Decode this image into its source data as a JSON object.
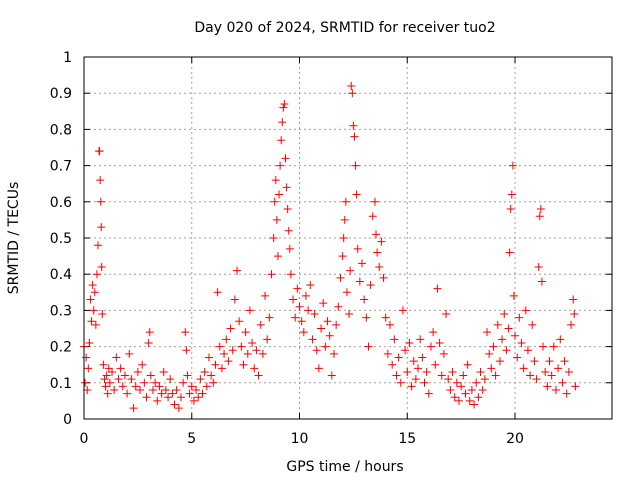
{
  "chart_data": {
    "type": "scatter",
    "title": "Day 020 of 2024, SRMTID for receiver tuo2",
    "xlabel": "GPS time / hours",
    "ylabel": "SRMTID / TECUs",
    "xlim": [
      0,
      24.5
    ],
    "ylim": [
      0,
      1
    ],
    "xticks": [
      0,
      5,
      10,
      15,
      20
    ],
    "xtick_labels": [
      "0",
      "5",
      "10",
      "15",
      "20"
    ],
    "yticks": [
      0,
      0.1,
      0.2,
      0.3,
      0.4,
      0.5,
      0.6,
      0.7,
      0.8,
      0.9,
      1
    ],
    "ytick_labels": [
      "0",
      "0.1",
      "0.2",
      "0.3",
      "0.4",
      "0.5",
      "0.6",
      "0.7",
      "0.8",
      "0.9",
      "1"
    ],
    "grid": true,
    "marker": "+",
    "color": "#ff0000",
    "series": [
      {
        "name": "SRMTID",
        "points": [
          [
            0.0,
            0.2
          ],
          [
            0.05,
            0.1
          ],
          [
            0.1,
            0.17
          ],
          [
            0.15,
            0.08
          ],
          [
            0.2,
            0.14
          ],
          [
            0.25,
            0.21
          ],
          [
            0.3,
            0.33
          ],
          [
            0.35,
            0.27
          ],
          [
            0.4,
            0.37
          ],
          [
            0.45,
            0.3
          ],
          [
            0.5,
            0.35
          ],
          [
            0.55,
            0.26
          ],
          [
            0.6,
            0.4
          ],
          [
            0.65,
            0.48
          ],
          [
            0.7,
            0.74
          ],
          [
            0.72,
            0.74
          ],
          [
            0.75,
            0.66
          ],
          [
            0.78,
            0.6
          ],
          [
            0.8,
            0.53
          ],
          [
            0.82,
            0.42
          ],
          [
            0.85,
            0.29
          ],
          [
            0.9,
            0.15
          ],
          [
            0.95,
            0.11
          ],
          [
            1.0,
            0.09
          ],
          [
            1.05,
            0.12
          ],
          [
            1.1,
            0.07
          ],
          [
            1.15,
            0.14
          ],
          [
            1.2,
            0.1
          ],
          [
            1.3,
            0.13
          ],
          [
            1.4,
            0.08
          ],
          [
            1.5,
            0.17
          ],
          [
            1.6,
            0.11
          ],
          [
            1.7,
            0.14
          ],
          [
            1.8,
            0.09
          ],
          [
            1.9,
            0.12
          ],
          [
            2.0,
            0.07
          ],
          [
            2.1,
            0.18
          ],
          [
            2.2,
            0.11
          ],
          [
            2.3,
            0.03
          ],
          [
            2.4,
            0.09
          ],
          [
            2.5,
            0.13
          ],
          [
            2.6,
            0.08
          ],
          [
            2.7,
            0.15
          ],
          [
            2.8,
            0.1
          ],
          [
            2.9,
            0.06
          ],
          [
            3.0,
            0.21
          ],
          [
            3.05,
            0.24
          ],
          [
            3.1,
            0.12
          ],
          [
            3.2,
            0.08
          ],
          [
            3.3,
            0.1
          ],
          [
            3.4,
            0.05
          ],
          [
            3.5,
            0.09
          ],
          [
            3.6,
            0.07
          ],
          [
            3.7,
            0.13
          ],
          [
            3.8,
            0.08
          ],
          [
            3.9,
            0.06
          ],
          [
            4.0,
            0.11
          ],
          [
            4.1,
            0.07
          ],
          [
            4.2,
            0.04
          ],
          [
            4.3,
            0.08
          ],
          [
            4.4,
            0.03
          ],
          [
            4.5,
            0.06
          ],
          [
            4.6,
            0.1
          ],
          [
            4.7,
            0.24
          ],
          [
            4.75,
            0.19
          ],
          [
            4.8,
            0.12
          ],
          [
            4.9,
            0.07
          ],
          [
            5.0,
            0.09
          ],
          [
            5.1,
            0.05
          ],
          [
            5.2,
            0.08
          ],
          [
            5.3,
            0.06
          ],
          [
            5.4,
            0.11
          ],
          [
            5.5,
            0.07
          ],
          [
            5.6,
            0.13
          ],
          [
            5.7,
            0.09
          ],
          [
            5.8,
            0.17
          ],
          [
            5.9,
            0.12
          ],
          [
            6.0,
            0.1
          ],
          [
            6.1,
            0.15
          ],
          [
            6.2,
            0.35
          ],
          [
            6.3,
            0.2
          ],
          [
            6.4,
            0.14
          ],
          [
            6.5,
            0.18
          ],
          [
            6.6,
            0.22
          ],
          [
            6.7,
            0.16
          ],
          [
            6.8,
            0.25
          ],
          [
            6.9,
            0.19
          ],
          [
            7.0,
            0.33
          ],
          [
            7.1,
            0.41
          ],
          [
            7.2,
            0.27
          ],
          [
            7.3,
            0.2
          ],
          [
            7.4,
            0.15
          ],
          [
            7.5,
            0.24
          ],
          [
            7.6,
            0.18
          ],
          [
            7.7,
            0.3
          ],
          [
            7.8,
            0.21
          ],
          [
            7.9,
            0.14
          ],
          [
            8.0,
            0.19
          ],
          [
            8.1,
            0.12
          ],
          [
            8.2,
            0.26
          ],
          [
            8.3,
            0.18
          ],
          [
            8.4,
            0.34
          ],
          [
            8.5,
            0.22
          ],
          [
            8.6,
            0.28
          ],
          [
            8.7,
            0.4
          ],
          [
            8.8,
            0.5
          ],
          [
            8.85,
            0.6
          ],
          [
            8.9,
            0.66
          ],
          [
            8.95,
            0.55
          ],
          [
            9.0,
            0.45
          ],
          [
            9.05,
            0.62
          ],
          [
            9.1,
            0.7
          ],
          [
            9.15,
            0.77
          ],
          [
            9.2,
            0.82
          ],
          [
            9.25,
            0.86
          ],
          [
            9.3,
            0.87
          ],
          [
            9.35,
            0.72
          ],
          [
            9.4,
            0.64
          ],
          [
            9.45,
            0.58
          ],
          [
            9.5,
            0.52
          ],
          [
            9.55,
            0.47
          ],
          [
            9.6,
            0.4
          ],
          [
            9.7,
            0.33
          ],
          [
            9.8,
            0.28
          ],
          [
            9.9,
            0.36
          ],
          [
            10.0,
            0.31
          ],
          [
            10.1,
            0.27
          ],
          [
            10.2,
            0.24
          ],
          [
            10.3,
            0.34
          ],
          [
            10.4,
            0.3
          ],
          [
            10.5,
            0.37
          ],
          [
            10.6,
            0.22
          ],
          [
            10.7,
            0.29
          ],
          [
            10.8,
            0.19
          ],
          [
            10.9,
            0.14
          ],
          [
            11.0,
            0.25
          ],
          [
            11.1,
            0.32
          ],
          [
            11.2,
            0.2
          ],
          [
            11.3,
            0.27
          ],
          [
            11.4,
            0.23
          ],
          [
            11.5,
            0.12
          ],
          [
            11.6,
            0.18
          ],
          [
            11.7,
            0.26
          ],
          [
            11.8,
            0.31
          ],
          [
            11.9,
            0.39
          ],
          [
            12.0,
            0.45
          ],
          [
            12.05,
            0.5
          ],
          [
            12.1,
            0.55
          ],
          [
            12.15,
            0.6
          ],
          [
            12.2,
            0.35
          ],
          [
            12.3,
            0.29
          ],
          [
            12.35,
            0.41
          ],
          [
            12.4,
            0.92
          ],
          [
            12.45,
            0.9
          ],
          [
            12.5,
            0.81
          ],
          [
            12.55,
            0.78
          ],
          [
            12.6,
            0.7
          ],
          [
            12.65,
            0.62
          ],
          [
            12.7,
            0.47
          ],
          [
            12.8,
            0.38
          ],
          [
            12.9,
            0.43
          ],
          [
            13.0,
            0.33
          ],
          [
            13.1,
            0.28
          ],
          [
            13.2,
            0.2
          ],
          [
            13.3,
            0.37
          ],
          [
            13.4,
            0.56
          ],
          [
            13.5,
            0.6
          ],
          [
            13.55,
            0.51
          ],
          [
            13.6,
            0.46
          ],
          [
            13.7,
            0.42
          ],
          [
            13.8,
            0.49
          ],
          [
            13.9,
            0.39
          ],
          [
            14.0,
            0.28
          ],
          [
            14.1,
            0.18
          ],
          [
            14.2,
            0.26
          ],
          [
            14.3,
            0.15
          ],
          [
            14.4,
            0.22
          ],
          [
            14.5,
            0.12
          ],
          [
            14.6,
            0.17
          ],
          [
            14.7,
            0.1
          ],
          [
            14.8,
            0.3
          ],
          [
            14.9,
            0.19
          ],
          [
            15.0,
            0.13
          ],
          [
            15.1,
            0.21
          ],
          [
            15.2,
            0.09
          ],
          [
            15.3,
            0.16
          ],
          [
            15.4,
            0.11
          ],
          [
            15.5,
            0.14
          ],
          [
            15.6,
            0.22
          ],
          [
            15.7,
            0.17
          ],
          [
            15.8,
            0.1
          ],
          [
            15.9,
            0.13
          ],
          [
            16.0,
            0.07
          ],
          [
            16.1,
            0.2
          ],
          [
            16.2,
            0.24
          ],
          [
            16.3,
            0.15
          ],
          [
            16.4,
            0.36
          ],
          [
            16.5,
            0.21
          ],
          [
            16.6,
            0.12
          ],
          [
            16.7,
            0.18
          ],
          [
            16.8,
            0.29
          ],
          [
            16.9,
            0.11
          ],
          [
            17.0,
            0.08
          ],
          [
            17.1,
            0.13
          ],
          [
            17.2,
            0.06
          ],
          [
            17.3,
            0.1
          ],
          [
            17.4,
            0.05
          ],
          [
            17.5,
            0.09
          ],
          [
            17.6,
            0.12
          ],
          [
            17.7,
            0.07
          ],
          [
            17.8,
            0.15
          ],
          [
            17.9,
            0.05
          ],
          [
            18.0,
            0.08
          ],
          [
            18.1,
            0.04
          ],
          [
            18.2,
            0.1
          ],
          [
            18.3,
            0.06
          ],
          [
            18.4,
            0.13
          ],
          [
            18.5,
            0.08
          ],
          [
            18.6,
            0.11
          ],
          [
            18.7,
            0.24
          ],
          [
            18.8,
            0.18
          ],
          [
            18.9,
            0.14
          ],
          [
            19.0,
            0.2
          ],
          [
            19.1,
            0.12
          ],
          [
            19.2,
            0.26
          ],
          [
            19.3,
            0.16
          ],
          [
            19.4,
            0.22
          ],
          [
            19.5,
            0.29
          ],
          [
            19.6,
            0.19
          ],
          [
            19.7,
            0.25
          ],
          [
            19.75,
            0.46
          ],
          [
            19.8,
            0.58
          ],
          [
            19.85,
            0.62
          ],
          [
            19.9,
            0.7
          ],
          [
            19.95,
            0.34
          ],
          [
            20.0,
            0.23
          ],
          [
            20.1,
            0.17
          ],
          [
            20.2,
            0.28
          ],
          [
            20.3,
            0.21
          ],
          [
            20.4,
            0.14
          ],
          [
            20.5,
            0.3
          ],
          [
            20.6,
            0.19
          ],
          [
            20.7,
            0.12
          ],
          [
            20.8,
            0.26
          ],
          [
            20.9,
            0.16
          ],
          [
            21.0,
            0.11
          ],
          [
            21.1,
            0.42
          ],
          [
            21.15,
            0.56
          ],
          [
            21.2,
            0.58
          ],
          [
            21.25,
            0.38
          ],
          [
            21.3,
            0.2
          ],
          [
            21.4,
            0.13
          ],
          [
            21.5,
            0.09
          ],
          [
            21.6,
            0.16
          ],
          [
            21.7,
            0.12
          ],
          [
            21.8,
            0.2
          ],
          [
            21.9,
            0.08
          ],
          [
            22.0,
            0.14
          ],
          [
            22.1,
            0.22
          ],
          [
            22.2,
            0.1
          ],
          [
            22.3,
            0.16
          ],
          [
            22.4,
            0.07
          ],
          [
            22.5,
            0.13
          ],
          [
            22.6,
            0.26
          ],
          [
            22.7,
            0.33
          ],
          [
            22.75,
            0.29
          ],
          [
            22.8,
            0.09
          ]
        ]
      }
    ]
  }
}
